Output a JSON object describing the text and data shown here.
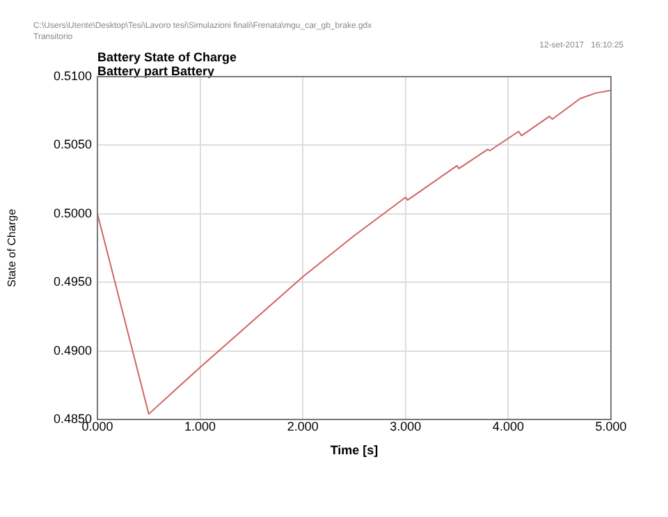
{
  "chart_data": {
    "type": "line",
    "title": "Battery State of Charge",
    "subtitle": "Battery part Battery",
    "xlabel": "Time [s]",
    "ylabel": "State of Charge",
    "annotations": [
      "C:\\Users\\Utente\\Desktop\\Tesi\\Lavoro tesi\\Simulazioni finali\\Frenata\\mgu_car_gb_brake.gdx",
      "Transitorio",
      "12-set-2017   16:10:25"
    ],
    "series": [
      {
        "color": "#d06464",
        "x": [
          0,
          0.5,
          1.0,
          1.5,
          2.0,
          2.5,
          3.0,
          3.02,
          3.5,
          3.52,
          3.8,
          3.82,
          4.1,
          4.13,
          4.4,
          4.43,
          4.7,
          4.85,
          5.0
        ],
        "values": [
          0.5,
          0.4854,
          0.4888,
          0.4921,
          0.4954,
          0.4984,
          0.5012,
          0.501,
          0.5035,
          0.5033,
          0.5047,
          0.5046,
          0.506,
          0.5057,
          0.5071,
          0.5069,
          0.5084,
          0.5088,
          0.509
        ]
      }
    ],
    "xlim": [
      0,
      5
    ],
    "xticks": [
      {
        "value": 0,
        "label": "0.000"
      },
      {
        "value": 1,
        "label": "1.000"
      },
      {
        "value": 2,
        "label": "2.000"
      },
      {
        "value": 3,
        "label": "3.000"
      },
      {
        "value": 4,
        "label": "4.000"
      },
      {
        "value": 5,
        "label": "5.000"
      }
    ],
    "ylim": [
      0.485,
      0.51
    ],
    "yticks": [
      {
        "value": 0.485,
        "label": "0.4850"
      },
      {
        "value": 0.49,
        "label": "0.4900"
      },
      {
        "value": 0.495,
        "label": "0.4950"
      },
      {
        "value": 0.5,
        "label": "0.5000"
      },
      {
        "value": 0.505,
        "label": "0.5050"
      },
      {
        "value": 0.51,
        "label": "0.5100"
      }
    ],
    "grid": true,
    "legend": false,
    "marker": "none",
    "line_style": "solid"
  }
}
